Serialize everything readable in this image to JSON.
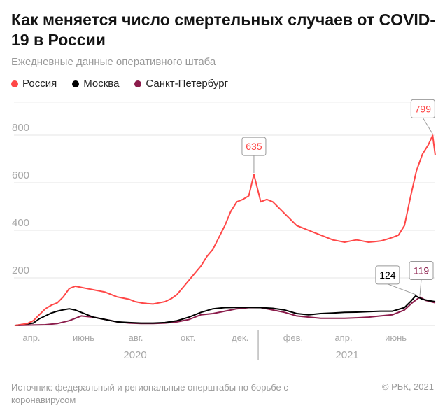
{
  "header": {
    "title": "Как меняется число смертельных случаев от COVID-19 в России",
    "subtitle": "Ежедневные данные оперативного штаба"
  },
  "legend": [
    {
      "label": "Россия",
      "color": "#ff4747"
    },
    {
      "label": "Москва",
      "color": "#000000"
    },
    {
      "label": "Санкт-Петербург",
      "color": "#8b1c4b"
    }
  ],
  "footer": {
    "source": "Источник: федеральный и региональные оперштабы по борьбе с коронавирусом",
    "credit": "© РБК, 2021"
  },
  "chart_data": {
    "type": "line",
    "title": "Как меняется число смертельных случаев от COVID-19 в России",
    "subtitle": "Ежедневные данные оперативного штаба",
    "ylim": [
      0,
      900
    ],
    "yticks": [
      200,
      400,
      600,
      800
    ],
    "xlim": [
      "2020-03-23",
      "2021-07-27"
    ],
    "xticks": [
      {
        "date": "2020-04-01",
        "label": "апр."
      },
      {
        "date": "2020-06-01",
        "label": "июнь"
      },
      {
        "date": "2020-08-01",
        "label": "авг."
      },
      {
        "date": "2020-10-01",
        "label": "окт."
      },
      {
        "date": "2020-12-01",
        "label": "дек."
      },
      {
        "date": "2021-02-01",
        "label": "фев."
      },
      {
        "date": "2021-04-01",
        "label": "апр."
      },
      {
        "date": "2021-06-01",
        "label": "июнь"
      }
    ],
    "years": [
      {
        "label": "2020",
        "center": "2020-08-10"
      },
      {
        "label": "2021",
        "center": "2021-04-15"
      }
    ],
    "year_divider": "2021-01-01",
    "grid": true,
    "legend_placement": "top",
    "series": [
      {
        "name": "Россия",
        "color": "#ff4747",
        "points": [
          [
            "2020-03-23",
            0
          ],
          [
            "2020-04-06",
            8
          ],
          [
            "2020-04-13",
            20
          ],
          [
            "2020-04-20",
            45
          ],
          [
            "2020-04-27",
            70
          ],
          [
            "2020-05-04",
            85
          ],
          [
            "2020-05-11",
            95
          ],
          [
            "2020-05-18",
            120
          ],
          [
            "2020-05-25",
            155
          ],
          [
            "2020-06-01",
            165
          ],
          [
            "2020-06-08",
            160
          ],
          [
            "2020-06-15",
            155
          ],
          [
            "2020-06-22",
            150
          ],
          [
            "2020-06-29",
            145
          ],
          [
            "2020-07-06",
            140
          ],
          [
            "2020-07-13",
            130
          ],
          [
            "2020-07-20",
            120
          ],
          [
            "2020-07-27",
            115
          ],
          [
            "2020-08-03",
            110
          ],
          [
            "2020-08-10",
            100
          ],
          [
            "2020-08-17",
            95
          ],
          [
            "2020-08-24",
            92
          ],
          [
            "2020-08-31",
            90
          ],
          [
            "2020-09-07",
            95
          ],
          [
            "2020-09-14",
            100
          ],
          [
            "2020-09-21",
            112
          ],
          [
            "2020-09-28",
            130
          ],
          [
            "2020-10-05",
            160
          ],
          [
            "2020-10-12",
            190
          ],
          [
            "2020-10-19",
            220
          ],
          [
            "2020-10-26",
            250
          ],
          [
            "2020-11-02",
            290
          ],
          [
            "2020-11-09",
            320
          ],
          [
            "2020-11-16",
            370
          ],
          [
            "2020-11-23",
            420
          ],
          [
            "2020-11-30",
            480
          ],
          [
            "2020-12-07",
            520
          ],
          [
            "2020-12-14",
            530
          ],
          [
            "2020-12-21",
            545
          ],
          [
            "2020-12-27",
            635
          ],
          [
            "2021-01-04",
            520
          ],
          [
            "2021-01-11",
            530
          ],
          [
            "2021-01-18",
            520
          ],
          [
            "2021-01-25",
            495
          ],
          [
            "2021-02-01",
            470
          ],
          [
            "2021-02-08",
            445
          ],
          [
            "2021-02-15",
            420
          ],
          [
            "2021-02-22",
            410
          ],
          [
            "2021-03-01",
            400
          ],
          [
            "2021-03-08",
            390
          ],
          [
            "2021-03-15",
            380
          ],
          [
            "2021-03-22",
            370
          ],
          [
            "2021-03-29",
            360
          ],
          [
            "2021-04-05",
            355
          ],
          [
            "2021-04-12",
            350
          ],
          [
            "2021-04-19",
            355
          ],
          [
            "2021-04-26",
            360
          ],
          [
            "2021-05-03",
            355
          ],
          [
            "2021-05-10",
            350
          ],
          [
            "2021-05-17",
            352
          ],
          [
            "2021-05-24",
            355
          ],
          [
            "2021-05-31",
            362
          ],
          [
            "2021-06-07",
            370
          ],
          [
            "2021-06-14",
            380
          ],
          [
            "2021-06-21",
            420
          ],
          [
            "2021-06-28",
            540
          ],
          [
            "2021-07-05",
            650
          ],
          [
            "2021-07-12",
            720
          ],
          [
            "2021-07-19",
            760
          ],
          [
            "2021-07-24",
            799
          ],
          [
            "2021-07-27",
            715
          ]
        ]
      },
      {
        "name": "Москва",
        "color": "#000000",
        "points": [
          [
            "2020-03-23",
            0
          ],
          [
            "2020-04-13",
            10
          ],
          [
            "2020-04-20",
            28
          ],
          [
            "2020-04-27",
            40
          ],
          [
            "2020-05-04",
            52
          ],
          [
            "2020-05-11",
            60
          ],
          [
            "2020-05-18",
            66
          ],
          [
            "2020-05-25",
            70
          ],
          [
            "2020-06-01",
            65
          ],
          [
            "2020-06-08",
            55
          ],
          [
            "2020-06-15",
            45
          ],
          [
            "2020-06-22",
            35
          ],
          [
            "2020-07-06",
            25
          ],
          [
            "2020-07-20",
            15
          ],
          [
            "2020-08-03",
            12
          ],
          [
            "2020-08-17",
            10
          ],
          [
            "2020-08-31",
            10
          ],
          [
            "2020-09-14",
            12
          ],
          [
            "2020-09-28",
            20
          ],
          [
            "2020-10-12",
            35
          ],
          [
            "2020-10-26",
            55
          ],
          [
            "2020-11-09",
            70
          ],
          [
            "2020-11-23",
            75
          ],
          [
            "2020-12-07",
            76
          ],
          [
            "2020-12-21",
            76
          ],
          [
            "2021-01-04",
            75
          ],
          [
            "2021-01-18",
            72
          ],
          [
            "2021-02-01",
            65
          ],
          [
            "2021-02-15",
            50
          ],
          [
            "2021-03-01",
            45
          ],
          [
            "2021-03-15",
            50
          ],
          [
            "2021-03-29",
            52
          ],
          [
            "2021-04-12",
            55
          ],
          [
            "2021-04-26",
            56
          ],
          [
            "2021-05-10",
            58
          ],
          [
            "2021-05-24",
            60
          ],
          [
            "2021-06-07",
            60
          ],
          [
            "2021-06-21",
            75
          ],
          [
            "2021-06-28",
            100
          ],
          [
            "2021-07-04",
            124
          ],
          [
            "2021-07-12",
            110
          ],
          [
            "2021-07-20",
            104
          ],
          [
            "2021-07-27",
            100
          ]
        ]
      },
      {
        "name": "Санкт-Петербург",
        "color": "#8b1c4b",
        "points": [
          [
            "2020-03-23",
            0
          ],
          [
            "2020-04-27",
            3
          ],
          [
            "2020-05-11",
            8
          ],
          [
            "2020-05-25",
            20
          ],
          [
            "2020-06-08",
            40
          ],
          [
            "2020-06-22",
            35
          ],
          [
            "2020-07-06",
            25
          ],
          [
            "2020-07-20",
            15
          ],
          [
            "2020-08-03",
            10
          ],
          [
            "2020-08-17",
            8
          ],
          [
            "2020-08-31",
            8
          ],
          [
            "2020-09-14",
            10
          ],
          [
            "2020-09-28",
            15
          ],
          [
            "2020-10-12",
            25
          ],
          [
            "2020-10-26",
            45
          ],
          [
            "2020-11-09",
            50
          ],
          [
            "2020-11-23",
            60
          ],
          [
            "2020-12-07",
            70
          ],
          [
            "2020-12-21",
            75
          ],
          [
            "2021-01-04",
            75
          ],
          [
            "2021-01-18",
            65
          ],
          [
            "2021-02-01",
            55
          ],
          [
            "2021-02-15",
            40
          ],
          [
            "2021-03-01",
            35
          ],
          [
            "2021-03-15",
            30
          ],
          [
            "2021-03-29",
            30
          ],
          [
            "2021-04-12",
            30
          ],
          [
            "2021-04-26",
            32
          ],
          [
            "2021-05-10",
            35
          ],
          [
            "2021-05-24",
            40
          ],
          [
            "2021-06-07",
            45
          ],
          [
            "2021-06-21",
            65
          ],
          [
            "2021-06-30",
            95
          ],
          [
            "2021-07-09",
            119
          ],
          [
            "2021-07-16",
            105
          ],
          [
            "2021-07-27",
            95
          ]
        ]
      }
    ],
    "annotations": [
      {
        "series": "Россия",
        "date": "2020-12-27",
        "value": 635,
        "label": "635"
      },
      {
        "series": "Россия",
        "date": "2021-07-24",
        "value": 799,
        "label": "799"
      },
      {
        "series": "Москва",
        "date": "2021-07-04",
        "value": 124,
        "label": "124"
      },
      {
        "series": "Санкт-Петербург",
        "date": "2021-07-09",
        "value": 119,
        "label": "119"
      }
    ]
  }
}
